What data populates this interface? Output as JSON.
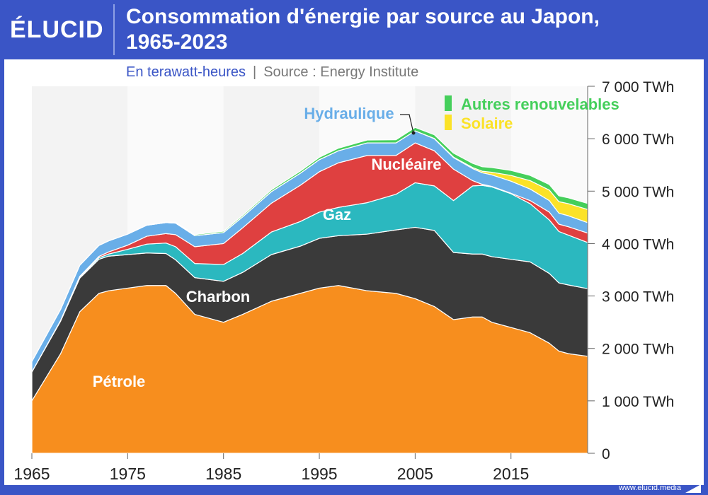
{
  "header": {
    "logo": "ÉLUCID",
    "title_line1": "Consommation d'énergie par source au Japon,",
    "title_line2": "1965-2023"
  },
  "subtitle": {
    "unit": "En terawatt-heures",
    "separator": "|",
    "source": "Source : Energy Institute"
  },
  "footer": {
    "url": "www.elucid.media"
  },
  "colors": {
    "background": "#3a55c6",
    "petrole": "#f78e1e",
    "charbon": "#3a3a3a",
    "gaz": "#2bb8bf",
    "nucleaire": "#df4040",
    "hydraulique": "#69aee8",
    "solaire": "#fbe228",
    "autres": "#45cf5b"
  },
  "chart_data": {
    "type": "area",
    "stacked": true,
    "x": [
      1965,
      1968,
      1970,
      1972,
      1973,
      1975,
      1977,
      1979,
      1980,
      1982,
      1985,
      1987,
      1990,
      1993,
      1995,
      1997,
      2000,
      2003,
      2005,
      2007,
      2009,
      2011,
      2012,
      2013,
      2015,
      2017,
      2019,
      2020,
      2021,
      2023
    ],
    "series": [
      {
        "name": "Pétrole",
        "color_key": "petrole",
        "values": [
          1000,
          1900,
          2700,
          3050,
          3100,
          3150,
          3200,
          3200,
          3050,
          2650,
          2500,
          2650,
          2900,
          3050,
          3150,
          3200,
          3100,
          3050,
          2950,
          2800,
          2550,
          2600,
          2600,
          2500,
          2400,
          2300,
          2100,
          1950,
          1900,
          1850
        ]
      },
      {
        "name": "Charbon",
        "values": [
          550,
          620,
          640,
          650,
          660,
          640,
          620,
          610,
          640,
          700,
          780,
          800,
          890,
          900,
          950,
          950,
          1080,
          1210,
          1360,
          1450,
          1280,
          1200,
          1200,
          1250,
          1300,
          1350,
          1330,
          1300,
          1310,
          1290
        ]
      },
      {
        "name": "Gaz",
        "values": [
          0,
          10,
          20,
          30,
          40,
          100,
          170,
          200,
          250,
          270,
          320,
          360,
          430,
          470,
          500,
          540,
          600,
          680,
          850,
          850,
          990,
          1300,
          1310,
          1330,
          1250,
          1110,
          1020,
          980,
          950,
          880
        ]
      },
      {
        "name": "Nucléaire",
        "values": [
          0,
          5,
          15,
          25,
          40,
          80,
          150,
          180,
          230,
          320,
          400,
          490,
          550,
          690,
          770,
          850,
          900,
          740,
          760,
          670,
          600,
          100,
          20,
          10,
          10,
          60,
          150,
          140,
          160,
          180
        ]
      },
      {
        "name": "Hydraulique",
        "values": [
          200,
          210,
          210,
          210,
          210,
          210,
          210,
          210,
          220,
          210,
          210,
          210,
          220,
          230,
          230,
          230,
          240,
          240,
          230,
          230,
          220,
          230,
          220,
          220,
          230,
          220,
          220,
          210,
          210,
          200
        ]
      },
      {
        "name": "Solaire",
        "values": [
          0,
          0,
          0,
          0,
          0,
          0,
          0,
          0,
          0,
          0,
          0,
          0,
          0,
          0,
          0,
          0,
          0,
          0,
          0,
          5,
          10,
          20,
          30,
          50,
          110,
          160,
          200,
          220,
          230,
          250
        ]
      },
      {
        "name": "Autres renouvelables",
        "values": [
          0,
          0,
          0,
          0,
          0,
          0,
          5,
          10,
          15,
          20,
          25,
          30,
          35,
          40,
          45,
          50,
          55,
          60,
          65,
          70,
          75,
          80,
          85,
          90,
          95,
          100,
          105,
          110,
          112,
          115
        ]
      }
    ],
    "ylim": [
      0,
      7000
    ],
    "xlim": [
      1965,
      2023
    ],
    "y_ticks": [
      {
        "value": 0,
        "label": "0"
      },
      {
        "value": 1000,
        "label": "1 000 TWh"
      },
      {
        "value": 2000,
        "label": "2 000 TWh"
      },
      {
        "value": 3000,
        "label": "3 000 TWh"
      },
      {
        "value": 4000,
        "label": "4 000 TWh"
      },
      {
        "value": 5000,
        "label": "5 000 TWh"
      },
      {
        "value": 6000,
        "label": "6 000 TWh"
      },
      {
        "value": 7000,
        "label": "7 000 TWh"
      }
    ],
    "x_ticks": [
      1965,
      1975,
      1985,
      1995,
      2005,
      2015
    ],
    "grid": "alternating vertical bands per decade",
    "labels": {
      "petrole": "Pétrole",
      "charbon": "Charbon",
      "gaz": "Gaz",
      "nucleaire": "Nucléaire",
      "hydraulique": "Hydraulique",
      "solaire": "Solaire",
      "autres": "Autres renouvelables"
    }
  }
}
